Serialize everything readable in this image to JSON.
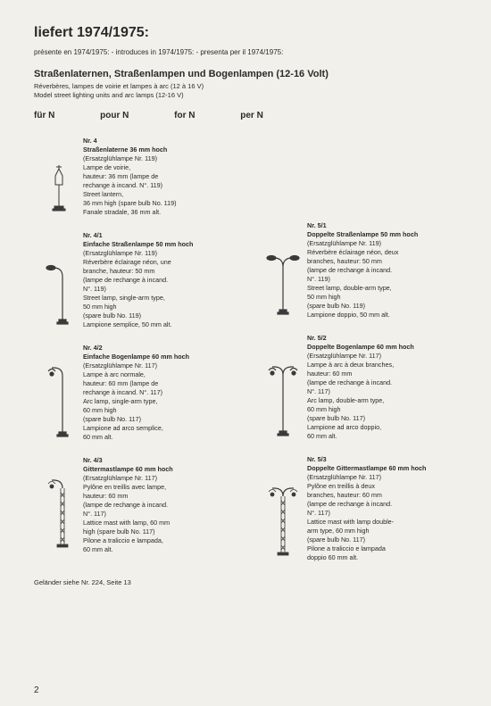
{
  "header": {
    "title": "liefert 1974/1975:",
    "subtitle": "présente en 1974/1975:    -    introduces in 1974/1975:    -    presenta per il 1974/1975:"
  },
  "section": {
    "heading": "Straßenlaternen, Straßenlampen und Bogenlampen (12-16 Volt)",
    "sub1": "Réverbères, lampes de voirie et lampes à arc (12 à 16 V)",
    "sub2": "Model street lighting units and arc lamps (12-16 V)"
  },
  "scale": {
    "de": "für N",
    "fr": "pour N",
    "en": "for N",
    "it": "per N"
  },
  "products": {
    "left": [
      {
        "nr": "Nr. 4",
        "title": "Straßenlaterne 36 mm hoch",
        "lines": [
          "(Ersatzglühlampe Nr. 119)",
          "Lampe de voirie,",
          "hauteur: 36 mm (lampe de",
          "rechange à incand. N°. 119)",
          "Street lantern,",
          "36 mm high (spare bulb No. 119)",
          "Fanale stradale, 36 mm alt."
        ]
      },
      {
        "nr": "Nr. 4/1",
        "title": "Einfache Straßenlampe 50 mm hoch",
        "lines": [
          "(Ersatzglühlampe Nr. 119)",
          "Réverbère éclairage néon, une",
          "branche, hauteur: 50 mm",
          "(lampe de rechange à incand.",
          "N°. 119)",
          "Street lamp, single-arm type,",
          "50 mm high",
          "(spare bulb No. 119)",
          "Lampione semplice, 50 mm alt."
        ]
      },
      {
        "nr": "Nr. 4/2",
        "title": "Einfache Bogenlampe 60 mm hoch",
        "lines": [
          "(Ersatzglühlampe Nr. 117)",
          "Lampe à arc normale,",
          "hauteur: 60 mm (lampe de",
          "rechange à incand. N°. 117)",
          "Arc lamp, single-arm type,",
          "60 mm high",
          "(spare bulb No. 117)",
          "Lampione ad arco semplice,",
          "60 mm alt."
        ]
      },
      {
        "nr": "Nr. 4/3",
        "title": "Gittermastlampe 60 mm hoch",
        "lines": [
          "(Ersatzglühlampe Nr. 117)",
          "Pylône en treillis avec lampe,",
          "hauteur: 60 mm",
          "(lampe de rechange à incand.",
          "N°. 117)",
          "Lattice mast with lamp, 60 mm",
          "high (spare bulb No. 117)",
          "Pilone a traliccio e lampada,",
          "60 mm alt."
        ]
      }
    ],
    "right": [
      {
        "nr": "Nr. 5/1",
        "title": "Doppelte Straßenlampe 50 mm hoch",
        "lines": [
          "(Ersatzglühlampe Nr. 119)",
          "Réverbère éclairage néon, deux",
          "branches, hauteur: 50 mm",
          "(lampe de rechange à incand.",
          "N°. 119)",
          "Street lamp, double-arm type,",
          "50 mm high",
          "(spare bulb No. 119)",
          "Lampione doppio, 50 mm alt."
        ]
      },
      {
        "nr": "Nr. 5/2",
        "title": "Doppelte Bogenlampe 60 mm hoch",
        "lines": [
          "(Ersatzglühlampe Nr. 117)",
          "Lampe à arc à deux branches,",
          "hauteur: 60 mm",
          "(lampe de rechange à incand.",
          "N°. 117)",
          "Arc lamp, double-arm type,",
          "60 mm high",
          "(spare bulb No. 117)",
          "Lampione ad arco doppio,",
          "60 mm alt."
        ]
      },
      {
        "nr": "Nr. 5/3",
        "title": "Doppelte Gittermastlampe 60 mm hoch",
        "lines": [
          "(Ersatzglühlampe Nr. 117)",
          "Pylône en treillis à deux",
          "branches, hauteur: 60 mm",
          "(lampe de rechange à incand.",
          "N°. 117)",
          "Lattice mast with lamp double-",
          "arm type, 60 mm high",
          "(spare bulb No. 117)",
          "Pilone a traliccio e lampada",
          "doppio 60 mm alt."
        ]
      }
    ]
  },
  "footer_note": "Geländer siehe Nr. 224, Seite 13",
  "page_number": "2",
  "colors": {
    "bg": "#f2f0ea",
    "text": "#2a2a2a",
    "stroke": "#3a3a3a"
  }
}
